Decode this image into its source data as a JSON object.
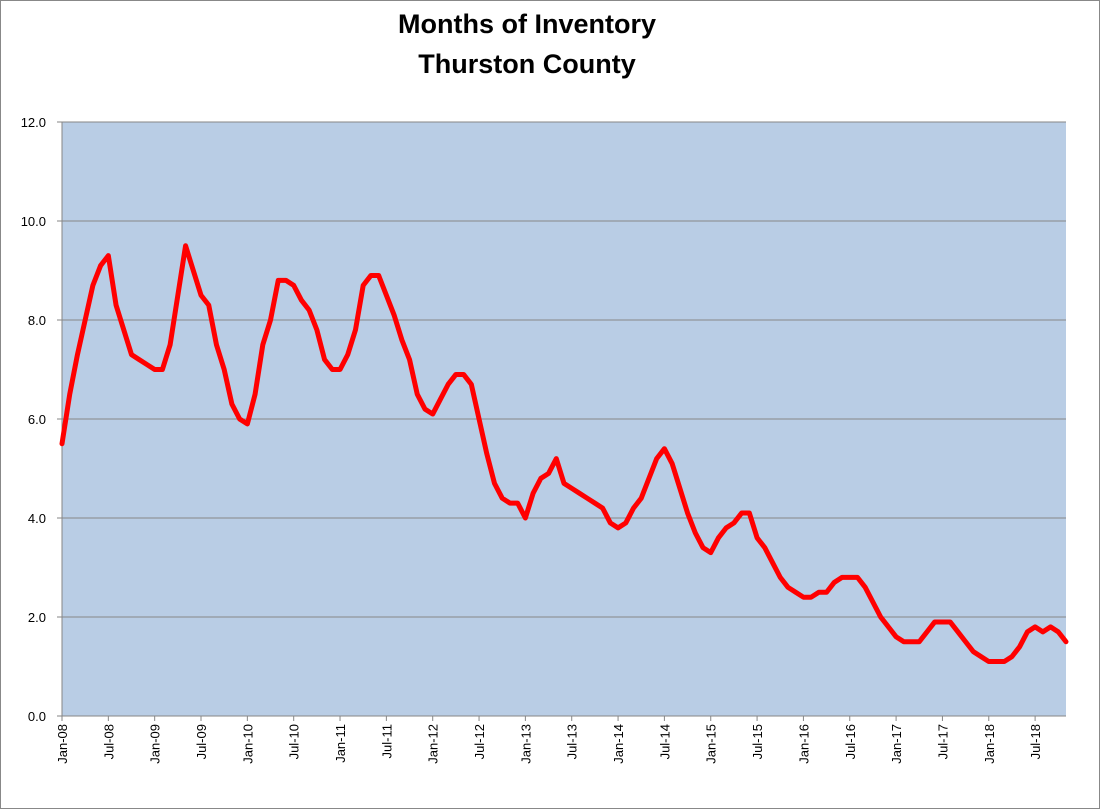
{
  "chart_data": {
    "type": "line",
    "title": "Months of Inventory",
    "subtitle": "Thurston County",
    "categories": [
      "Jan-08",
      null,
      null,
      null,
      null,
      null,
      "Jul-08",
      null,
      null,
      null,
      null,
      null,
      "Jan-09",
      null,
      null,
      null,
      null,
      null,
      "Jul-09",
      null,
      null,
      null,
      null,
      null,
      "Jan-10",
      null,
      null,
      null,
      null,
      null,
      "Jul-10",
      null,
      null,
      null,
      null,
      null,
      "Jan-11",
      null,
      null,
      null,
      null,
      null,
      "Jul-11",
      null,
      null,
      null,
      null,
      null,
      "Jan-12",
      null,
      null,
      null,
      null,
      null,
      "Jul-12",
      null,
      null,
      null,
      null,
      null,
      "Jan-13",
      null,
      null,
      null,
      null,
      null,
      "Jul-13",
      null,
      null,
      null,
      null,
      null,
      "Jan-14",
      null,
      null,
      null,
      null,
      null,
      "Jul-14",
      null,
      null,
      null,
      null,
      null,
      "Jan-15",
      null,
      null,
      null,
      null,
      null,
      "Jul-15",
      null,
      null,
      null,
      null,
      null,
      "Jan-16",
      null,
      null,
      null,
      null,
      null,
      "Jul-16",
      null,
      null,
      null,
      null,
      null,
      "Jan-17",
      null,
      null,
      null,
      null,
      null,
      "Jul-17",
      null,
      null,
      null,
      null,
      null,
      "Jan-18",
      null,
      null,
      null,
      null,
      null,
      "Jul-18",
      null,
      null,
      null,
      null
    ],
    "values": [
      5.5,
      6.5,
      7.3,
      8.0,
      8.7,
      9.1,
      9.3,
      8.3,
      7.8,
      7.3,
      7.2,
      7.1,
      7.0,
      7.0,
      7.5,
      8.5,
      9.5,
      9.0,
      8.5,
      8.3,
      7.5,
      7.0,
      6.3,
      6.0,
      5.9,
      6.5,
      7.5,
      8.0,
      8.8,
      8.8,
      8.7,
      8.4,
      8.2,
      7.8,
      7.2,
      7.0,
      7.0,
      7.3,
      7.8,
      8.7,
      8.9,
      8.9,
      8.5,
      8.1,
      7.6,
      7.2,
      6.5,
      6.2,
      6.1,
      6.4,
      6.7,
      6.9,
      6.9,
      6.7,
      6.0,
      5.3,
      4.7,
      4.4,
      4.3,
      4.3,
      4.0,
      4.5,
      4.8,
      4.9,
      5.2,
      4.7,
      4.6,
      4.5,
      4.4,
      4.3,
      4.2,
      3.9,
      3.8,
      3.9,
      4.2,
      4.4,
      4.8,
      5.2,
      5.4,
      5.1,
      4.6,
      4.1,
      3.7,
      3.4,
      3.3,
      3.6,
      3.8,
      3.9,
      4.1,
      4.1,
      3.6,
      3.4,
      3.1,
      2.8,
      2.6,
      2.5,
      2.4,
      2.4,
      2.5,
      2.5,
      2.7,
      2.8,
      2.8,
      2.8,
      2.6,
      2.3,
      2.0,
      1.8,
      1.6,
      1.5,
      1.5,
      1.5,
      1.7,
      1.9,
      1.9,
      1.9,
      1.7,
      1.5,
      1.3,
      1.2,
      1.1,
      1.1,
      1.1,
      1.2,
      1.4,
      1.7,
      1.8,
      1.7,
      1.8,
      1.7,
      1.5
    ],
    "color": "#ff0000",
    "ylim": [
      0,
      12
    ],
    "yticks": [
      {
        "value": 0,
        "label": "0.0"
      },
      {
        "value": 2,
        "label": "2.0"
      },
      {
        "value": 4,
        "label": "4.0"
      },
      {
        "value": 6,
        "label": "6.0"
      },
      {
        "value": 8,
        "label": "8.0"
      },
      {
        "value": 10,
        "label": "10.0"
      },
      {
        "value": 12,
        "label": "12.0"
      }
    ],
    "grid": true,
    "plot_background": "#b9cde5"
  }
}
